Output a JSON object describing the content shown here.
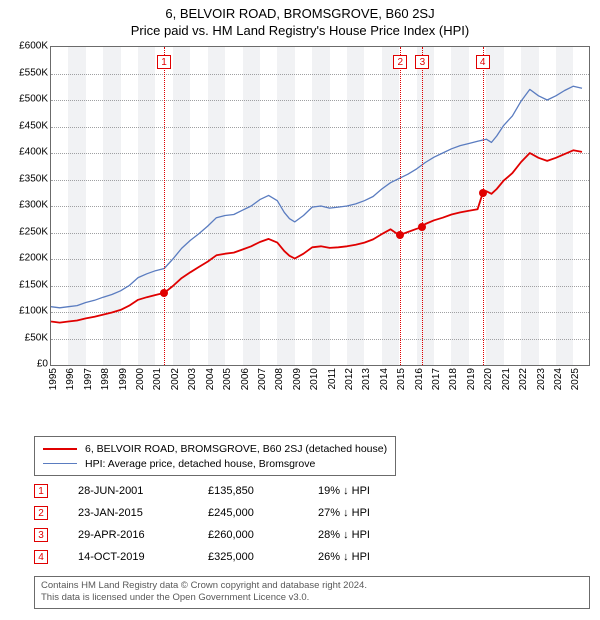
{
  "titles": {
    "line1": "6, BELVOIR ROAD, BROMSGROVE, B60 2SJ",
    "line2": "Price paid vs. HM Land Registry's House Price Index (HPI)"
  },
  "chart": {
    "type": "line",
    "background_color": "#ffffff",
    "shade_color": "#f1f2f4",
    "grid_color": "#9fa0a2",
    "border_color": "#6b6b6b",
    "x": {
      "min": 1995,
      "max": 2025.9,
      "tick_step": 1,
      "labels_rotated": -90
    },
    "y": {
      "min": 0,
      "max": 600,
      "tick_step": 50,
      "prefix": "£",
      "suffix": "K"
    },
    "series": [
      {
        "name": "hpi",
        "label": "HPI: Average price, detached house, Bromsgrove",
        "color": "#5a7cc0",
        "width": 1.3,
        "points": [
          [
            1995,
            110
          ],
          [
            1995.5,
            108
          ],
          [
            1996,
            110
          ],
          [
            1996.5,
            112
          ],
          [
            1997,
            118
          ],
          [
            1997.5,
            122
          ],
          [
            1998,
            128
          ],
          [
            1998.5,
            133
          ],
          [
            1999,
            140
          ],
          [
            1999.5,
            150
          ],
          [
            2000,
            165
          ],
          [
            2000.5,
            172
          ],
          [
            2001,
            178
          ],
          [
            2001.5,
            182
          ],
          [
            2002,
            200
          ],
          [
            2002.5,
            220
          ],
          [
            2003,
            235
          ],
          [
            2003.5,
            248
          ],
          [
            2004,
            262
          ],
          [
            2004.5,
            278
          ],
          [
            2005,
            282
          ],
          [
            2005.5,
            284
          ],
          [
            2006,
            292
          ],
          [
            2006.5,
            300
          ],
          [
            2007,
            312
          ],
          [
            2007.5,
            320
          ],
          [
            2008,
            310
          ],
          [
            2008.4,
            288
          ],
          [
            2008.7,
            276
          ],
          [
            2009,
            270
          ],
          [
            2009.5,
            282
          ],
          [
            2010,
            298
          ],
          [
            2010.5,
            300
          ],
          [
            2011,
            296
          ],
          [
            2011.5,
            298
          ],
          [
            2012,
            300
          ],
          [
            2012.5,
            304
          ],
          [
            2013,
            310
          ],
          [
            2013.5,
            318
          ],
          [
            2014,
            332
          ],
          [
            2014.5,
            344
          ],
          [
            2015,
            352
          ],
          [
            2015.5,
            360
          ],
          [
            2016,
            370
          ],
          [
            2016.5,
            382
          ],
          [
            2017,
            392
          ],
          [
            2017.5,
            400
          ],
          [
            2018,
            408
          ],
          [
            2018.5,
            414
          ],
          [
            2019,
            418
          ],
          [
            2019.5,
            422
          ],
          [
            2020,
            426
          ],
          [
            2020.3,
            420
          ],
          [
            2020.6,
            432
          ],
          [
            2021,
            452
          ],
          [
            2021.5,
            470
          ],
          [
            2022,
            498
          ],
          [
            2022.5,
            520
          ],
          [
            2023,
            508
          ],
          [
            2023.5,
            500
          ],
          [
            2024,
            508
          ],
          [
            2024.5,
            518
          ],
          [
            2025,
            526
          ],
          [
            2025.5,
            522
          ]
        ]
      },
      {
        "name": "property",
        "label": "6, BELVOIR ROAD, BROMSGROVE, B60 2SJ (detached house)",
        "color": "#e00000",
        "width": 1.8,
        "points": [
          [
            1995,
            82
          ],
          [
            1995.5,
            80
          ],
          [
            1996,
            82
          ],
          [
            1996.5,
            84
          ],
          [
            1997,
            88
          ],
          [
            1997.5,
            91
          ],
          [
            1998,
            95
          ],
          [
            1998.5,
            99
          ],
          [
            1999,
            104
          ],
          [
            1999.5,
            112
          ],
          [
            2000,
            123
          ],
          [
            2000.5,
            128
          ],
          [
            2001,
            132
          ],
          [
            2001.5,
            136
          ],
          [
            2002,
            149
          ],
          [
            2002.5,
            164
          ],
          [
            2003,
            175
          ],
          [
            2003.5,
            185
          ],
          [
            2004,
            195
          ],
          [
            2004.5,
            207
          ],
          [
            2005,
            210
          ],
          [
            2005.5,
            212
          ],
          [
            2006,
            218
          ],
          [
            2006.5,
            224
          ],
          [
            2007,
            232
          ],
          [
            2007.5,
            238
          ],
          [
            2008,
            231
          ],
          [
            2008.4,
            215
          ],
          [
            2008.7,
            206
          ],
          [
            2009,
            201
          ],
          [
            2009.5,
            210
          ],
          [
            2010,
            222
          ],
          [
            2010.5,
            224
          ],
          [
            2011,
            221
          ],
          [
            2011.5,
            222
          ],
          [
            2012,
            224
          ],
          [
            2012.5,
            227
          ],
          [
            2013,
            231
          ],
          [
            2013.5,
            237
          ],
          [
            2014,
            247
          ],
          [
            2014.5,
            256
          ],
          [
            2015,
            245
          ],
          [
            2015.5,
            251
          ],
          [
            2016,
            257
          ],
          [
            2016.3,
            260
          ],
          [
            2016.5,
            266
          ],
          [
            2017,
            273
          ],
          [
            2017.5,
            278
          ],
          [
            2018,
            284
          ],
          [
            2018.5,
            288
          ],
          [
            2019,
            291
          ],
          [
            2019.5,
            294
          ],
          [
            2019.8,
            325
          ],
          [
            2020,
            328
          ],
          [
            2020.3,
            323
          ],
          [
            2020.6,
            332
          ],
          [
            2021,
            348
          ],
          [
            2021.5,
            362
          ],
          [
            2022,
            383
          ],
          [
            2022.5,
            400
          ],
          [
            2023,
            391
          ],
          [
            2023.5,
            385
          ],
          [
            2024,
            391
          ],
          [
            2024.5,
            398
          ],
          [
            2025,
            405
          ],
          [
            2025.5,
            402
          ]
        ]
      }
    ],
    "sale_markers": [
      {
        "n": "1",
        "x": 2001.49,
        "y": 136,
        "top_y": 8
      },
      {
        "n": "2",
        "x": 2015.06,
        "y": 245,
        "top_y": 8
      },
      {
        "n": "3",
        "x": 2016.33,
        "y": 260,
        "top_y": 8
      },
      {
        "n": "4",
        "x": 2019.79,
        "y": 325,
        "top_y": 8
      }
    ],
    "shade_bands_years": [
      [
        1996,
        1997
      ],
      [
        1998,
        1999
      ],
      [
        2000,
        2001
      ],
      [
        2002,
        2003
      ],
      [
        2004,
        2005
      ],
      [
        2006,
        2007
      ],
      [
        2008,
        2009
      ],
      [
        2010,
        2011
      ],
      [
        2012,
        2013
      ],
      [
        2014,
        2015
      ],
      [
        2016,
        2017
      ],
      [
        2018,
        2019
      ],
      [
        2020,
        2021
      ],
      [
        2022,
        2023
      ],
      [
        2024,
        2025
      ]
    ]
  },
  "legend": {
    "items": [
      {
        "color": "#e00000",
        "text": "6, BELVOIR ROAD, BROMSGROVE, B60 2SJ (detached house)"
      },
      {
        "color": "#5a7cc0",
        "text": "HPI: Average price, detached house, Bromsgrove"
      }
    ]
  },
  "sales": [
    {
      "n": "1",
      "date": "28-JUN-2001",
      "price": "£135,850",
      "diff": "19% ↓ HPI"
    },
    {
      "n": "2",
      "date": "23-JAN-2015",
      "price": "£245,000",
      "diff": "27% ↓ HPI"
    },
    {
      "n": "3",
      "date": "29-APR-2016",
      "price": "£260,000",
      "diff": "28% ↓ HPI"
    },
    {
      "n": "4",
      "date": "14-OCT-2019",
      "price": "£325,000",
      "diff": "26% ↓ HPI"
    }
  ],
  "footer": {
    "line1": "Contains HM Land Registry data © Crown copyright and database right 2024.",
    "line2": "This data is licensed under the Open Government Licence v3.0."
  }
}
